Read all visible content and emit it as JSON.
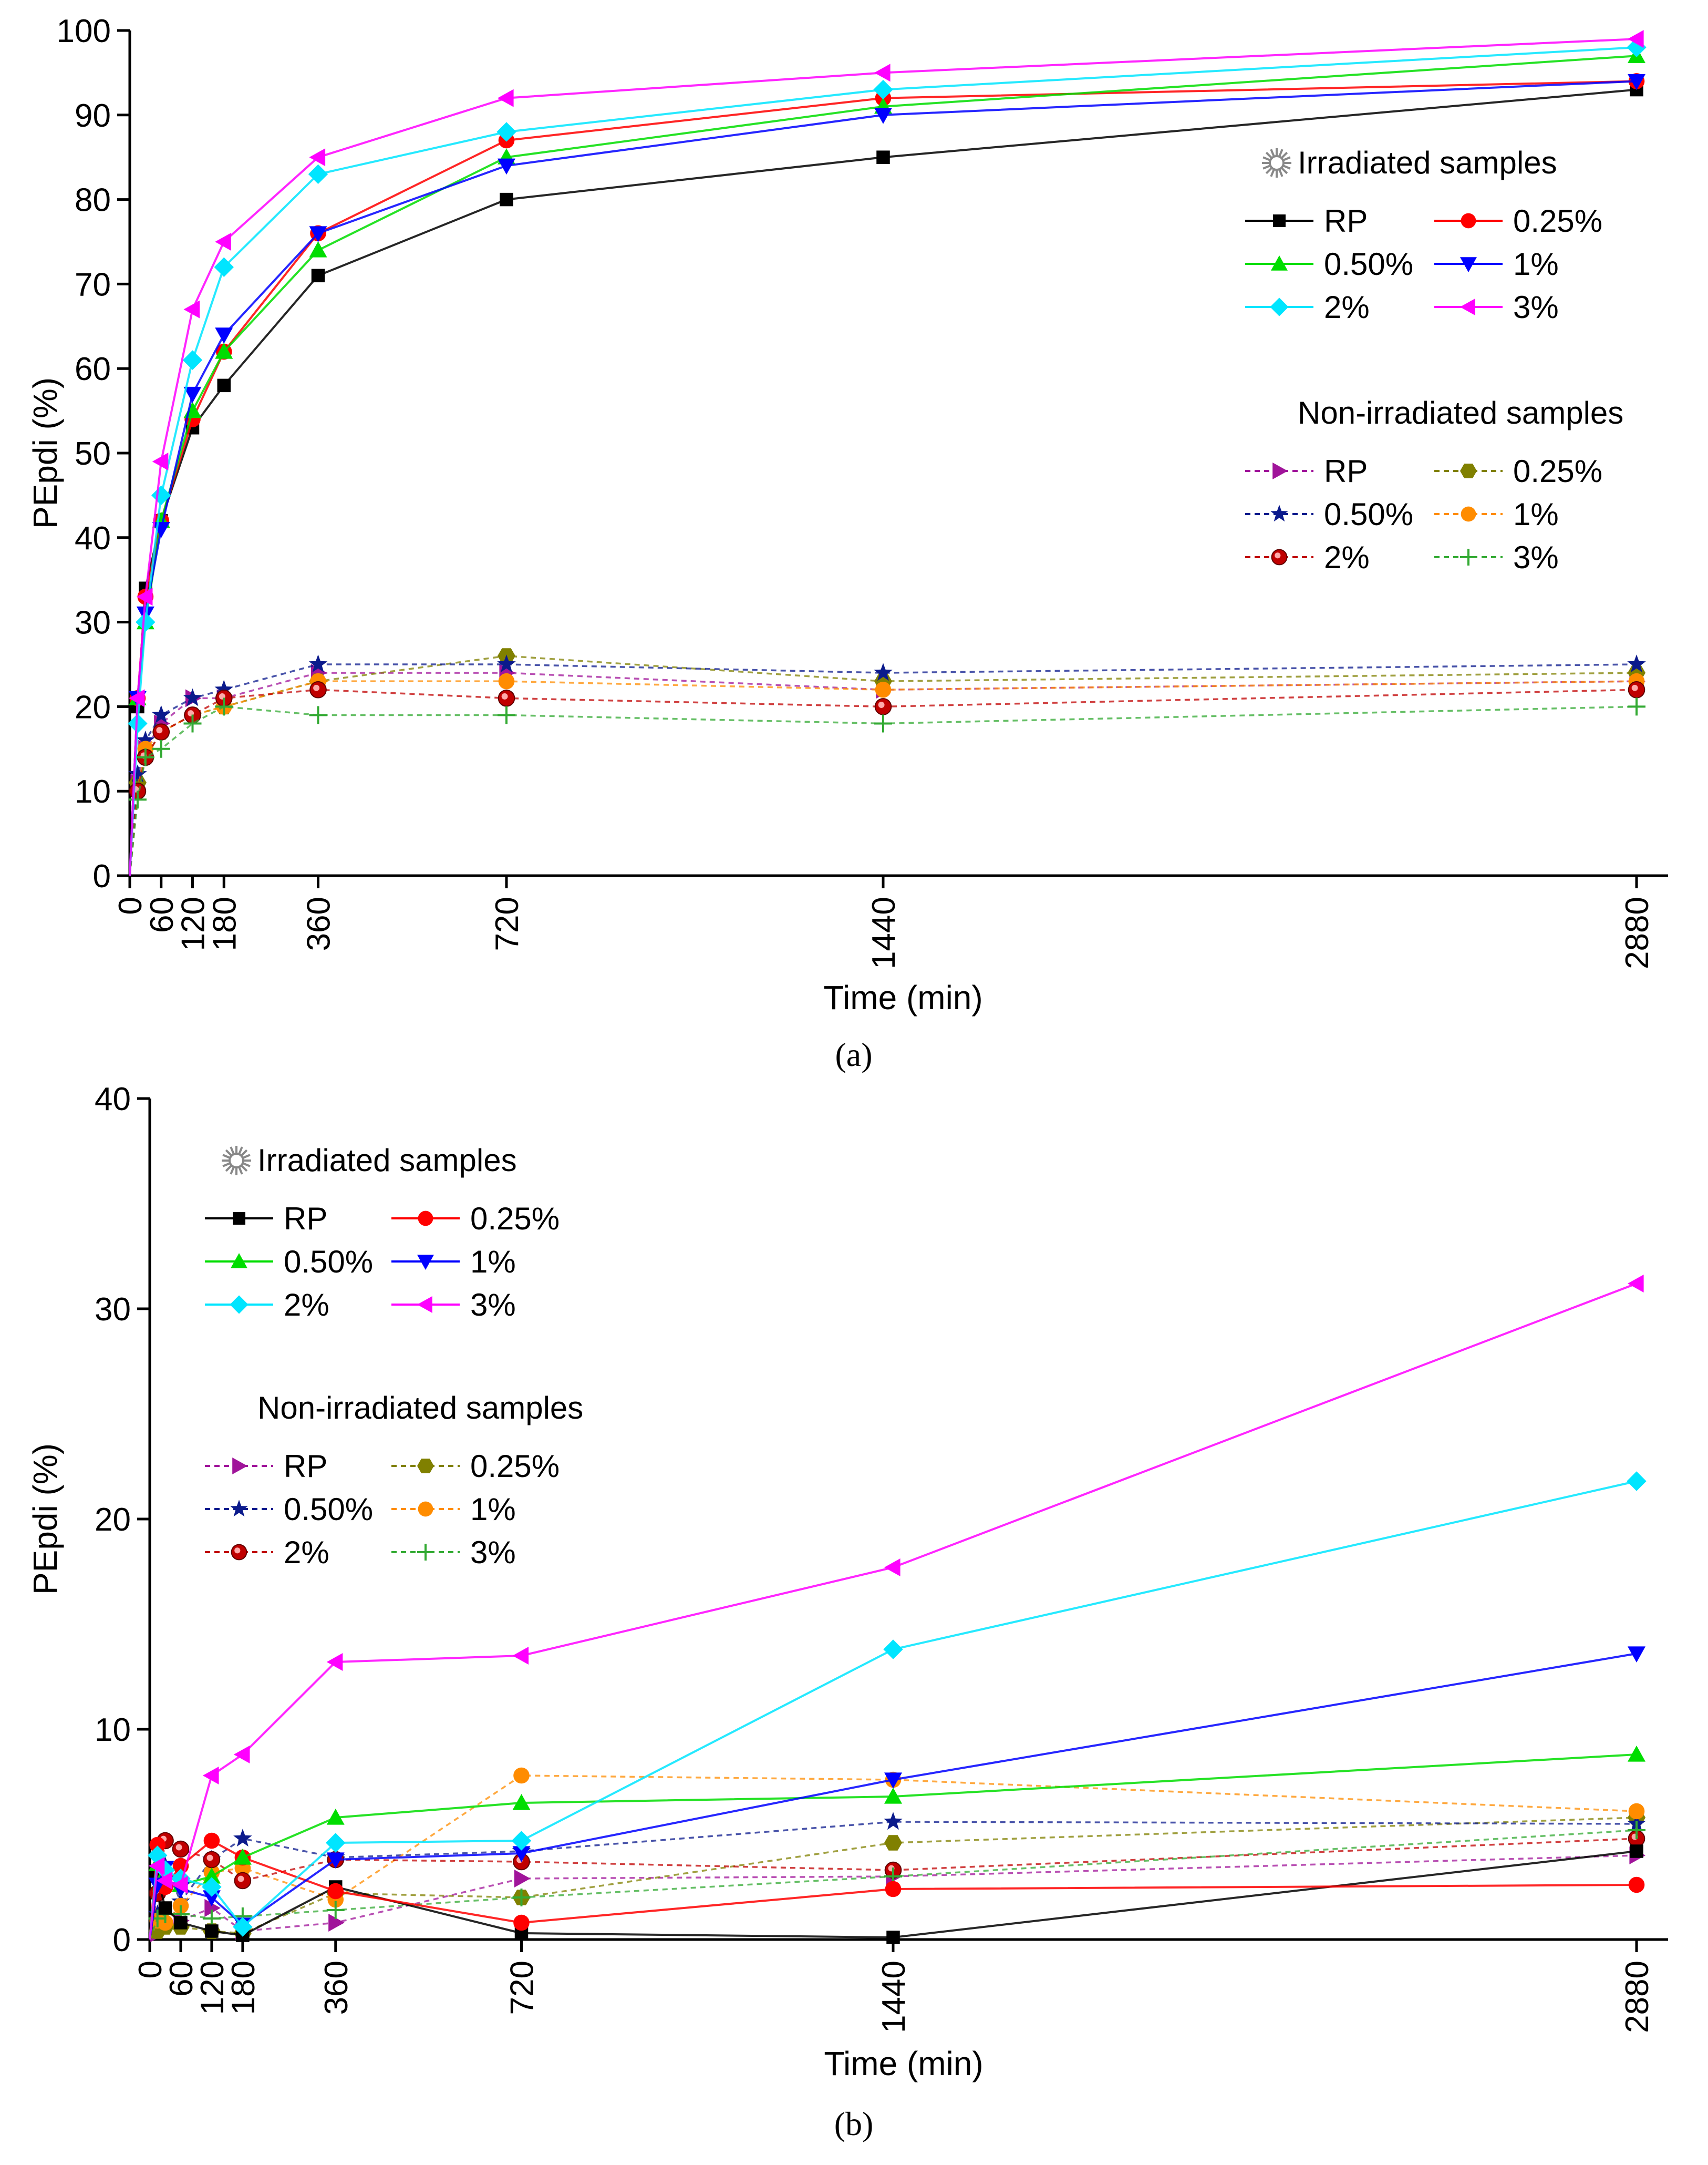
{
  "figure": {
    "captions": [
      "(a)",
      "(b)"
    ]
  },
  "chart_data": [
    {
      "type": "line",
      "panel": "a",
      "xlabel": "Time (min)",
      "ylabel": "PEpdi (%)",
      "xlim": [
        0,
        2880
      ],
      "ylim": [
        0,
        100
      ],
      "xticks": [
        0,
        60,
        120,
        180,
        360,
        720,
        1440,
        2880
      ],
      "yticks": [
        0,
        10,
        20,
        30,
        40,
        50,
        60,
        70,
        80,
        90,
        100
      ],
      "legend_position": "right",
      "legend_groups": [
        {
          "title": "Irradiated samples",
          "icon": "sun-icon"
        },
        {
          "title": "Non-irradiated samples",
          "icon": "moon-icon"
        }
      ],
      "x": [
        0,
        15,
        30,
        60,
        120,
        180,
        360,
        720,
        1440,
        2880
      ],
      "series": [
        {
          "name": "RP",
          "group": 0,
          "style": "solid",
          "color": "#000000",
          "marker": "square",
          "values": [
            0,
            20,
            34,
            42,
            53,
            58,
            71,
            80,
            85,
            93
          ]
        },
        {
          "name": "0.25%",
          "group": 0,
          "style": "solid",
          "color": "#ff0000",
          "marker": "circle",
          "values": [
            0,
            21,
            33,
            42,
            54,
            62,
            76,
            87,
            92,
            94
          ]
        },
        {
          "name": "0.50%",
          "group": 0,
          "style": "solid",
          "color": "#00dd00",
          "marker": "triangle-up",
          "values": [
            0,
            21,
            30,
            42,
            55,
            62,
            74,
            85,
            91,
            97
          ]
        },
        {
          "name": "1%",
          "group": 0,
          "style": "solid",
          "color": "#0000ff",
          "marker": "triangle-down",
          "values": [
            0,
            21,
            31,
            41,
            57,
            64,
            76,
            84,
            90,
            94
          ]
        },
        {
          "name": "2%",
          "group": 0,
          "style": "solid",
          "color": "#00e5ff",
          "marker": "diamond",
          "values": [
            0,
            18,
            30,
            45,
            61,
            72,
            83,
            88,
            93,
            98
          ]
        },
        {
          "name": "3%",
          "group": 0,
          "style": "solid",
          "color": "#ff00ff",
          "marker": "triangle-left",
          "values": [
            0,
            21,
            33,
            49,
            67,
            75,
            85,
            92,
            95,
            99
          ]
        },
        {
          "name": "RP",
          "group": 1,
          "style": "dashed",
          "color": "#a0149a",
          "marker": "triangle-right",
          "values": [
            0,
            11,
            15,
            18,
            21,
            21,
            24,
            24,
            22,
            23
          ]
        },
        {
          "name": "0.25%",
          "group": 1,
          "style": "dashed",
          "color": "#808000",
          "marker": "hexagon",
          "values": [
            0,
            11,
            14,
            17,
            19,
            20,
            23,
            26,
            23,
            24
          ]
        },
        {
          "name": "0.50%",
          "group": 1,
          "style": "dashed",
          "color": "#0b1a8c",
          "marker": "star",
          "values": [
            0,
            12,
            16,
            19,
            21,
            22,
            25,
            25,
            24,
            25
          ]
        },
        {
          "name": "1%",
          "group": 1,
          "style": "dashed",
          "color": "#ff8c00",
          "marker": "circle",
          "values": [
            0,
            10,
            15,
            17,
            19,
            20,
            23,
            23,
            22,
            23
          ]
        },
        {
          "name": "2%",
          "group": 1,
          "style": "dashed",
          "color": "#c00000",
          "marker": "half-circle",
          "values": [
            0,
            10,
            14,
            17,
            19,
            21,
            22,
            21,
            20,
            22
          ]
        },
        {
          "name": "3%",
          "group": 1,
          "style": "dashed",
          "color": "#33aa33",
          "marker": "plus",
          "values": [
            0,
            9,
            14,
            15,
            18,
            20,
            19,
            19,
            18,
            20
          ]
        }
      ]
    },
    {
      "type": "line",
      "panel": "b",
      "xlabel": "Time (min)",
      "ylabel": "PEpdi (%)",
      "xlim": [
        0,
        2880
      ],
      "ylim": [
        0,
        40
      ],
      "xticks": [
        0,
        60,
        120,
        180,
        360,
        720,
        1440,
        2880
      ],
      "yticks": [
        0,
        10,
        20,
        30,
        40
      ],
      "legend_position": "top-left",
      "legend_groups": [
        {
          "title": "Irradiated samples",
          "icon": "sun-icon"
        },
        {
          "title": "Non-irradiated samples",
          "icon": "moon-icon"
        }
      ],
      "x": [
        0,
        15,
        30,
        60,
        120,
        180,
        360,
        720,
        1440,
        2880
      ],
      "series": [
        {
          "name": "RP",
          "group": 0,
          "style": "solid",
          "color": "#000000",
          "marker": "square",
          "values": [
            0,
            3.0,
            1.5,
            0.8,
            0.4,
            0.2,
            2.5,
            0.3,
            0.1,
            4.2
          ]
        },
        {
          "name": "0.25%",
          "group": 0,
          "style": "solid",
          "color": "#ff0000",
          "marker": "circle",
          "values": [
            0,
            4.5,
            2.5,
            3.5,
            4.7,
            3.9,
            2.3,
            0.8,
            2.4,
            2.6
          ]
        },
        {
          "name": "0.50%",
          "group": 0,
          "style": "solid",
          "color": "#00dd00",
          "marker": "triangle-up",
          "values": [
            0,
            3.6,
            3.2,
            2.6,
            3.0,
            3.9,
            5.8,
            6.5,
            6.8,
            8.8
          ]
        },
        {
          "name": "1%",
          "group": 0,
          "style": "solid",
          "color": "#0000ff",
          "marker": "triangle-down",
          "values": [
            0,
            2.6,
            3.4,
            2.4,
            2.0,
            0.7,
            3.8,
            4.1,
            7.6,
            13.6
          ]
        },
        {
          "name": "2%",
          "group": 0,
          "style": "solid",
          "color": "#00e5ff",
          "marker": "diamond",
          "values": [
            0,
            4.0,
            3.3,
            2.9,
            2.5,
            0.6,
            4.6,
            4.7,
            13.8,
            21.8
          ]
        },
        {
          "name": "3%",
          "group": 0,
          "style": "solid",
          "color": "#ff00ff",
          "marker": "triangle-left",
          "values": [
            0,
            3.5,
            2.8,
            2.6,
            7.8,
            8.8,
            13.2,
            13.5,
            17.7,
            31.2
          ]
        },
        {
          "name": "RP",
          "group": 1,
          "style": "dashed",
          "color": "#a0149a",
          "marker": "triangle-right",
          "values": [
            0,
            0.3,
            0.6,
            0.9,
            1.5,
            0.4,
            0.8,
            2.9,
            3.0,
            4.0
          ]
        },
        {
          "name": "0.25%",
          "group": 1,
          "style": "dashed",
          "color": "#808000",
          "marker": "hexagon",
          "values": [
            0,
            0.4,
            0.6,
            0.6,
            0.4,
            0.3,
            2.2,
            2.0,
            4.6,
            5.8
          ]
        },
        {
          "name": "0.50%",
          "group": 1,
          "style": "dashed",
          "color": "#0b1a8c",
          "marker": "star",
          "values": [
            0,
            1.2,
            3.5,
            1.8,
            3.8,
            4.8,
            3.9,
            4.2,
            5.6,
            5.5
          ]
        },
        {
          "name": "1%",
          "group": 1,
          "style": "dashed",
          "color": "#ff8c00",
          "marker": "circle",
          "values": [
            0,
            0.9,
            0.8,
            1.6,
            3.2,
            3.4,
            1.9,
            7.8,
            7.6,
            6.1
          ]
        },
        {
          "name": "2%",
          "group": 1,
          "style": "dashed",
          "color": "#c00000",
          "marker": "half-circle",
          "values": [
            0,
            2.2,
            4.7,
            4.3,
            3.8,
            2.8,
            3.8,
            3.7,
            3.3,
            4.8
          ]
        },
        {
          "name": "3%",
          "group": 1,
          "style": "dashed",
          "color": "#33aa33",
          "marker": "plus",
          "values": [
            0,
            1.0,
            1.2,
            1.2,
            1.0,
            1.1,
            1.4,
            2.0,
            3.0,
            5.2
          ]
        }
      ]
    }
  ]
}
